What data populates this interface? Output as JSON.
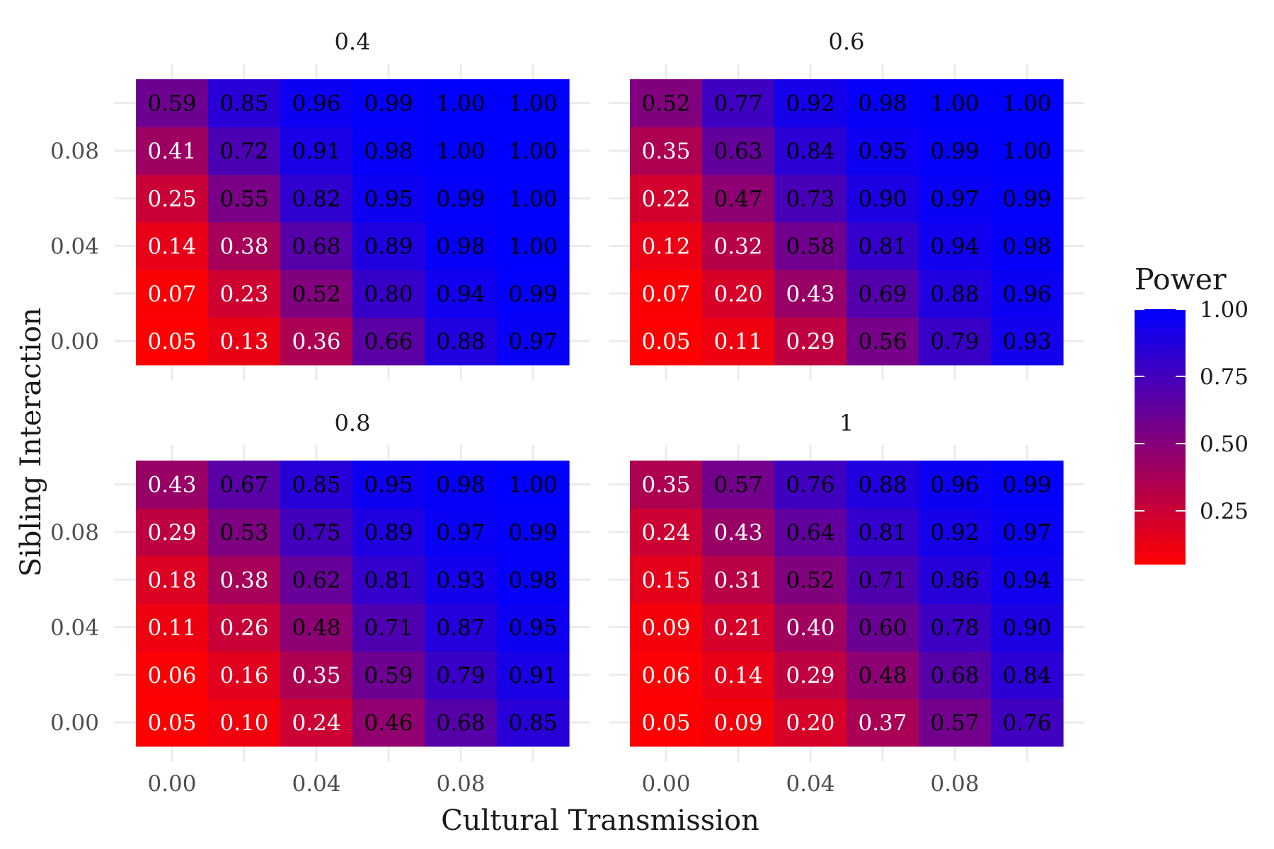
{
  "chart_data": {
    "type": "heatmap",
    "xlabel": "Cultural Transmission",
    "ylabel": "Sibling Interaction",
    "x": [
      0.0,
      0.02,
      0.04,
      0.06,
      0.08,
      0.1
    ],
    "y": [
      0.0,
      0.02,
      0.04,
      0.06,
      0.08,
      0.1
    ],
    "x_ticks": [
      "0.00",
      "0.04",
      "0.08"
    ],
    "y_ticks": [
      "0.00",
      "0.04",
      "0.08"
    ],
    "legend": {
      "title": "Power",
      "position": "right",
      "ticks": [
        "0.25",
        "0.50",
        "0.75",
        "1.00"
      ],
      "color_low": "#ff0000",
      "color_high": "#0000ff"
    },
    "grid": true,
    "facets": [
      {
        "title": "0.4",
        "values": [
          [
            0.05,
            0.13,
            0.36,
            0.66,
            0.88,
            0.97
          ],
          [
            0.07,
            0.23,
            0.52,
            0.8,
            0.94,
            0.99
          ],
          [
            0.14,
            0.38,
            0.68,
            0.89,
            0.98,
            1.0
          ],
          [
            0.25,
            0.55,
            0.82,
            0.95,
            0.99,
            1.0
          ],
          [
            0.41,
            0.72,
            0.91,
            0.98,
            1.0,
            1.0
          ],
          [
            0.59,
            0.85,
            0.96,
            0.99,
            1.0,
            1.0
          ]
        ]
      },
      {
        "title": "0.6",
        "values": [
          [
            0.05,
            0.11,
            0.29,
            0.56,
            0.79,
            0.93
          ],
          [
            0.07,
            0.2,
            0.43,
            0.69,
            0.88,
            0.96
          ],
          [
            0.12,
            0.32,
            0.58,
            0.81,
            0.94,
            0.98
          ],
          [
            0.22,
            0.47,
            0.73,
            0.9,
            0.97,
            0.99
          ],
          [
            0.35,
            0.63,
            0.84,
            0.95,
            0.99,
            1.0
          ],
          [
            0.52,
            0.77,
            0.92,
            0.98,
            1.0,
            1.0
          ]
        ]
      },
      {
        "title": "0.8",
        "values": [
          [
            0.05,
            0.1,
            0.24,
            0.46,
            0.68,
            0.85
          ],
          [
            0.06,
            0.16,
            0.35,
            0.59,
            0.79,
            0.91
          ],
          [
            0.11,
            0.26,
            0.48,
            0.71,
            0.87,
            0.95
          ],
          [
            0.18,
            0.38,
            0.62,
            0.81,
            0.93,
            0.98
          ],
          [
            0.29,
            0.53,
            0.75,
            0.89,
            0.97,
            0.99
          ],
          [
            0.43,
            0.67,
            0.85,
            0.95,
            0.98,
            1.0
          ]
        ]
      },
      {
        "title": "1",
        "values": [
          [
            0.05,
            0.09,
            0.2,
            0.37,
            0.57,
            0.76
          ],
          [
            0.06,
            0.14,
            0.29,
            0.48,
            0.68,
            0.84
          ],
          [
            0.09,
            0.21,
            0.4,
            0.6,
            0.78,
            0.9
          ],
          [
            0.15,
            0.31,
            0.52,
            0.71,
            0.86,
            0.94
          ],
          [
            0.24,
            0.43,
            0.64,
            0.81,
            0.92,
            0.97
          ],
          [
            0.35,
            0.57,
            0.76,
            0.88,
            0.96,
            0.99
          ]
        ]
      }
    ]
  }
}
